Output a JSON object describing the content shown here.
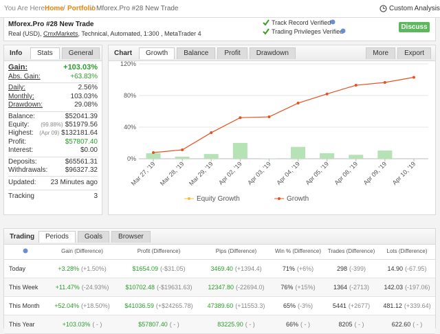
{
  "breadcrumb": {
    "label": "You Are Here :",
    "items": [
      "Home",
      "Portfolio",
      "Mforex.Pro #28 New Trade"
    ],
    "separator": "/"
  },
  "custom_analysis": "Custom Analysis",
  "account": {
    "title": "Mforex.Pro #28 New Trade",
    "details_prefix": "Real (USD), ",
    "broker": "CmxMarkets",
    "details_suffix": ", Technical, Automated, 1:300 , MetaTrader 4",
    "badges": [
      "Track Record Verified",
      "Trading Privileges Verified"
    ],
    "discuss": "Discuss"
  },
  "info": {
    "title": "Info",
    "tabs": [
      "Stats",
      "General"
    ],
    "groups": [
      [
        {
          "label": "Gain:",
          "value": "+103.03%"
        },
        {
          "label": "Abs. Gain:",
          "value": "+63.83%"
        }
      ],
      [
        {
          "label": "Daily:",
          "value": "2.56%"
        },
        {
          "label": "Monthly:",
          "value": "103.03%"
        },
        {
          "label": "Drawdown:",
          "value": "29.08%"
        }
      ],
      [
        {
          "label": "Balance:",
          "value": "$52041.39"
        },
        {
          "label": "Equity:",
          "note": "(99.88%)",
          "value": "$51979.56"
        },
        {
          "label": "Highest:",
          "note": "(Apr 09)",
          "value": "$132181.64"
        },
        {
          "label": "Profit:",
          "value": "$57807.40"
        },
        {
          "label": "Interest:",
          "value": "$0.00"
        }
      ],
      [
        {
          "label": "Deposits:",
          "value": "$65561.31"
        },
        {
          "label": "Withdrawals:",
          "value": "$96327.32"
        }
      ],
      [
        {
          "label": "Updated:",
          "value": "23 Minutes ago"
        }
      ],
      [
        {
          "label": "Tracking",
          "value": "3"
        }
      ]
    ]
  },
  "chart_panel": {
    "title": "Chart",
    "tabs": [
      "Growth",
      "Balance",
      "Profit",
      "Drawdown"
    ],
    "menus": [
      "More",
      "Export"
    ]
  },
  "chart_data": {
    "type": "line",
    "categories": [
      "Mar 27, '19",
      "Mar 28, '19",
      "Mar 29, '19",
      "Apr 02, '19",
      "Apr 03, '19",
      "Apr 04, '19",
      "Apr 05, '19",
      "Apr 08, '19",
      "Apr 09, '19",
      "Apr 10, '19"
    ],
    "bars": {
      "color": "#b5e3b5",
      "values": [
        7,
        2.6,
        6,
        20,
        0.3,
        15,
        7,
        5,
        10.4,
        0
      ]
    },
    "series": [
      {
        "name": "Equity Growth",
        "color": "#f2c12e",
        "values": [
          null,
          null,
          null,
          null,
          null,
          null,
          null,
          null,
          null,
          null
        ]
      },
      {
        "name": "Growth",
        "color": "#e8501e",
        "values": [
          7.8,
          11.3,
          33,
          52,
          53,
          70.4,
          82,
          93,
          96.5,
          103.03
        ]
      }
    ],
    "ylim": [
      0,
      120
    ],
    "yticks": [
      {
        "value": 0,
        "label": "0%"
      },
      {
        "value": 40,
        "label": "40%"
      },
      {
        "value": 80,
        "label": "80%"
      },
      {
        "value": 120,
        "label": "120%"
      }
    ],
    "grid": true
  },
  "trading": {
    "title": "Trading",
    "tabs": [
      "Periods",
      "Goals",
      "Browser"
    ],
    "headers": [
      "Gain (Difference)",
      "Profit (Difference)",
      "Pips (Difference)",
      "Win % (Difference)",
      "Trades (Difference)",
      "Lots (Difference)"
    ],
    "rows": [
      {
        "period": "Today",
        "cells": [
          {
            "value": "+3.28%",
            "diff": "(+1.50%)"
          },
          {
            "value": "$1654.09",
            "diff": "(-$31.05)"
          },
          {
            "value": "3469.40",
            "diff": "(+1394.4)"
          },
          {
            "value": "71%",
            "diff": "(+6%)"
          },
          {
            "value": "298",
            "diff": "(-399)"
          },
          {
            "value": "14.90",
            "diff": "(-67.95)"
          }
        ]
      },
      {
        "period": "This Week",
        "cells": [
          {
            "value": "+11.47%",
            "diff": "(-24.93%)"
          },
          {
            "value": "$10702.48",
            "diff": "(-$19631.63)"
          },
          {
            "value": "12347.80",
            "diff": "(-22694.0)"
          },
          {
            "value": "76%",
            "diff": "(+15%)"
          },
          {
            "value": "1364",
            "diff": "(-2713)"
          },
          {
            "value": "142.03",
            "diff": "(-197.06)"
          }
        ]
      },
      {
        "period": "This Month",
        "cells": [
          {
            "value": "+52.04%",
            "diff": "(+18.50%)"
          },
          {
            "value": "$41036.59",
            "diff": "(+$24265.78)"
          },
          {
            "value": "47389.60",
            "diff": "(+11553.3)"
          },
          {
            "value": "65%",
            "diff": "(-3%)"
          },
          {
            "value": "5441",
            "diff": "(+2677)"
          },
          {
            "value": "481.12",
            "diff": "(+339.64)"
          }
        ]
      },
      {
        "period": "This Year",
        "cells": [
          {
            "value": "+103.03%",
            "diff": "( - )"
          },
          {
            "value": "$57807.40",
            "diff": "( - )"
          },
          {
            "value": "83225.90",
            "diff": "( - )"
          },
          {
            "value": "66%",
            "diff": "( - )"
          },
          {
            "value": "8205",
            "diff": "( - )"
          },
          {
            "value": "622.60",
            "diff": "( - )"
          }
        ]
      }
    ]
  }
}
